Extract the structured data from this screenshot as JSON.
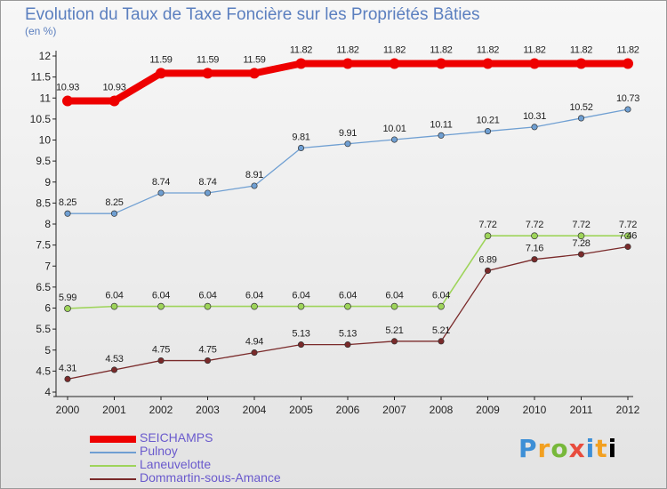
{
  "header": {
    "title": "Evolution du Taux de Taxe Foncière sur les Propriétés Bâties",
    "unit": "(en %)"
  },
  "logo": {
    "text": "Proxiti"
  },
  "chart_data": {
    "type": "line",
    "title": "Evolution du Taux de Taxe Foncière sur les Propriétés Bâties",
    "ylabel": "(en %)",
    "xlabel": "",
    "x": [
      "2000",
      "2001",
      "2002",
      "2003",
      "2004",
      "2005",
      "2006",
      "2007",
      "2008",
      "2009",
      "2010",
      "2011",
      "2012"
    ],
    "ylim": [
      4,
      12
    ],
    "yticks": [
      "4",
      "4.5",
      "5",
      "5.5",
      "6",
      "6.5",
      "7",
      "7.5",
      "8",
      "8.5",
      "9",
      "9.5",
      "10",
      "10.5",
      "11",
      "11.5",
      "12"
    ],
    "grid": false,
    "legend_position": "bottom-left",
    "series": [
      {
        "name": "SEICHAMPS",
        "color": "#ee0000",
        "values": [
          10.93,
          10.93,
          11.59,
          11.59,
          11.59,
          11.82,
          11.82,
          11.82,
          11.82,
          11.82,
          11.82,
          11.82,
          11.82
        ],
        "labels": [
          "10.93",
          "10.93",
          "11.59",
          "11.59",
          "11.59",
          "11.82",
          "11.82",
          "11.82",
          "11.82",
          "11.82",
          "11.82",
          "11.82",
          "11.82"
        ]
      },
      {
        "name": "Pulnoy",
        "color": "#6f9fd2",
        "values": [
          8.25,
          8.25,
          8.74,
          8.74,
          8.91,
          9.81,
          9.91,
          10.01,
          10.11,
          10.21,
          10.31,
          10.52,
          10.73
        ],
        "labels": [
          "8.25",
          "8.25",
          "8.74",
          "8.74",
          "8.91",
          "9.81",
          "9.91",
          "10.01",
          "10.11",
          "10.21",
          "10.31",
          "10.52",
          "10.73"
        ]
      },
      {
        "name": "Laneuvelotte",
        "color": "#9ed45a",
        "values": [
          5.99,
          6.04,
          6.04,
          6.04,
          6.04,
          6.04,
          6.04,
          6.04,
          6.04,
          7.72,
          7.72,
          7.72,
          7.72
        ],
        "labels": [
          "5.99",
          "6.04",
          "6.04",
          "6.04",
          "6.04",
          "6.04",
          "6.04",
          "6.04",
          "6.04",
          "7.72",
          "7.72",
          "7.72",
          "7.72"
        ]
      },
      {
        "name": "Dommartin-sous-Amance",
        "color": "#7a2a2a",
        "values": [
          4.31,
          4.53,
          4.75,
          4.75,
          4.94,
          5.13,
          5.13,
          5.21,
          5.21,
          6.89,
          7.16,
          7.28,
          7.46
        ],
        "labels": [
          "4.31",
          "4.53",
          "4.75",
          "4.75",
          "4.94",
          "5.13",
          "5.13",
          "5.21",
          "5.21",
          "6.89",
          "7.16",
          "7.28",
          "7.46"
        ]
      }
    ]
  }
}
